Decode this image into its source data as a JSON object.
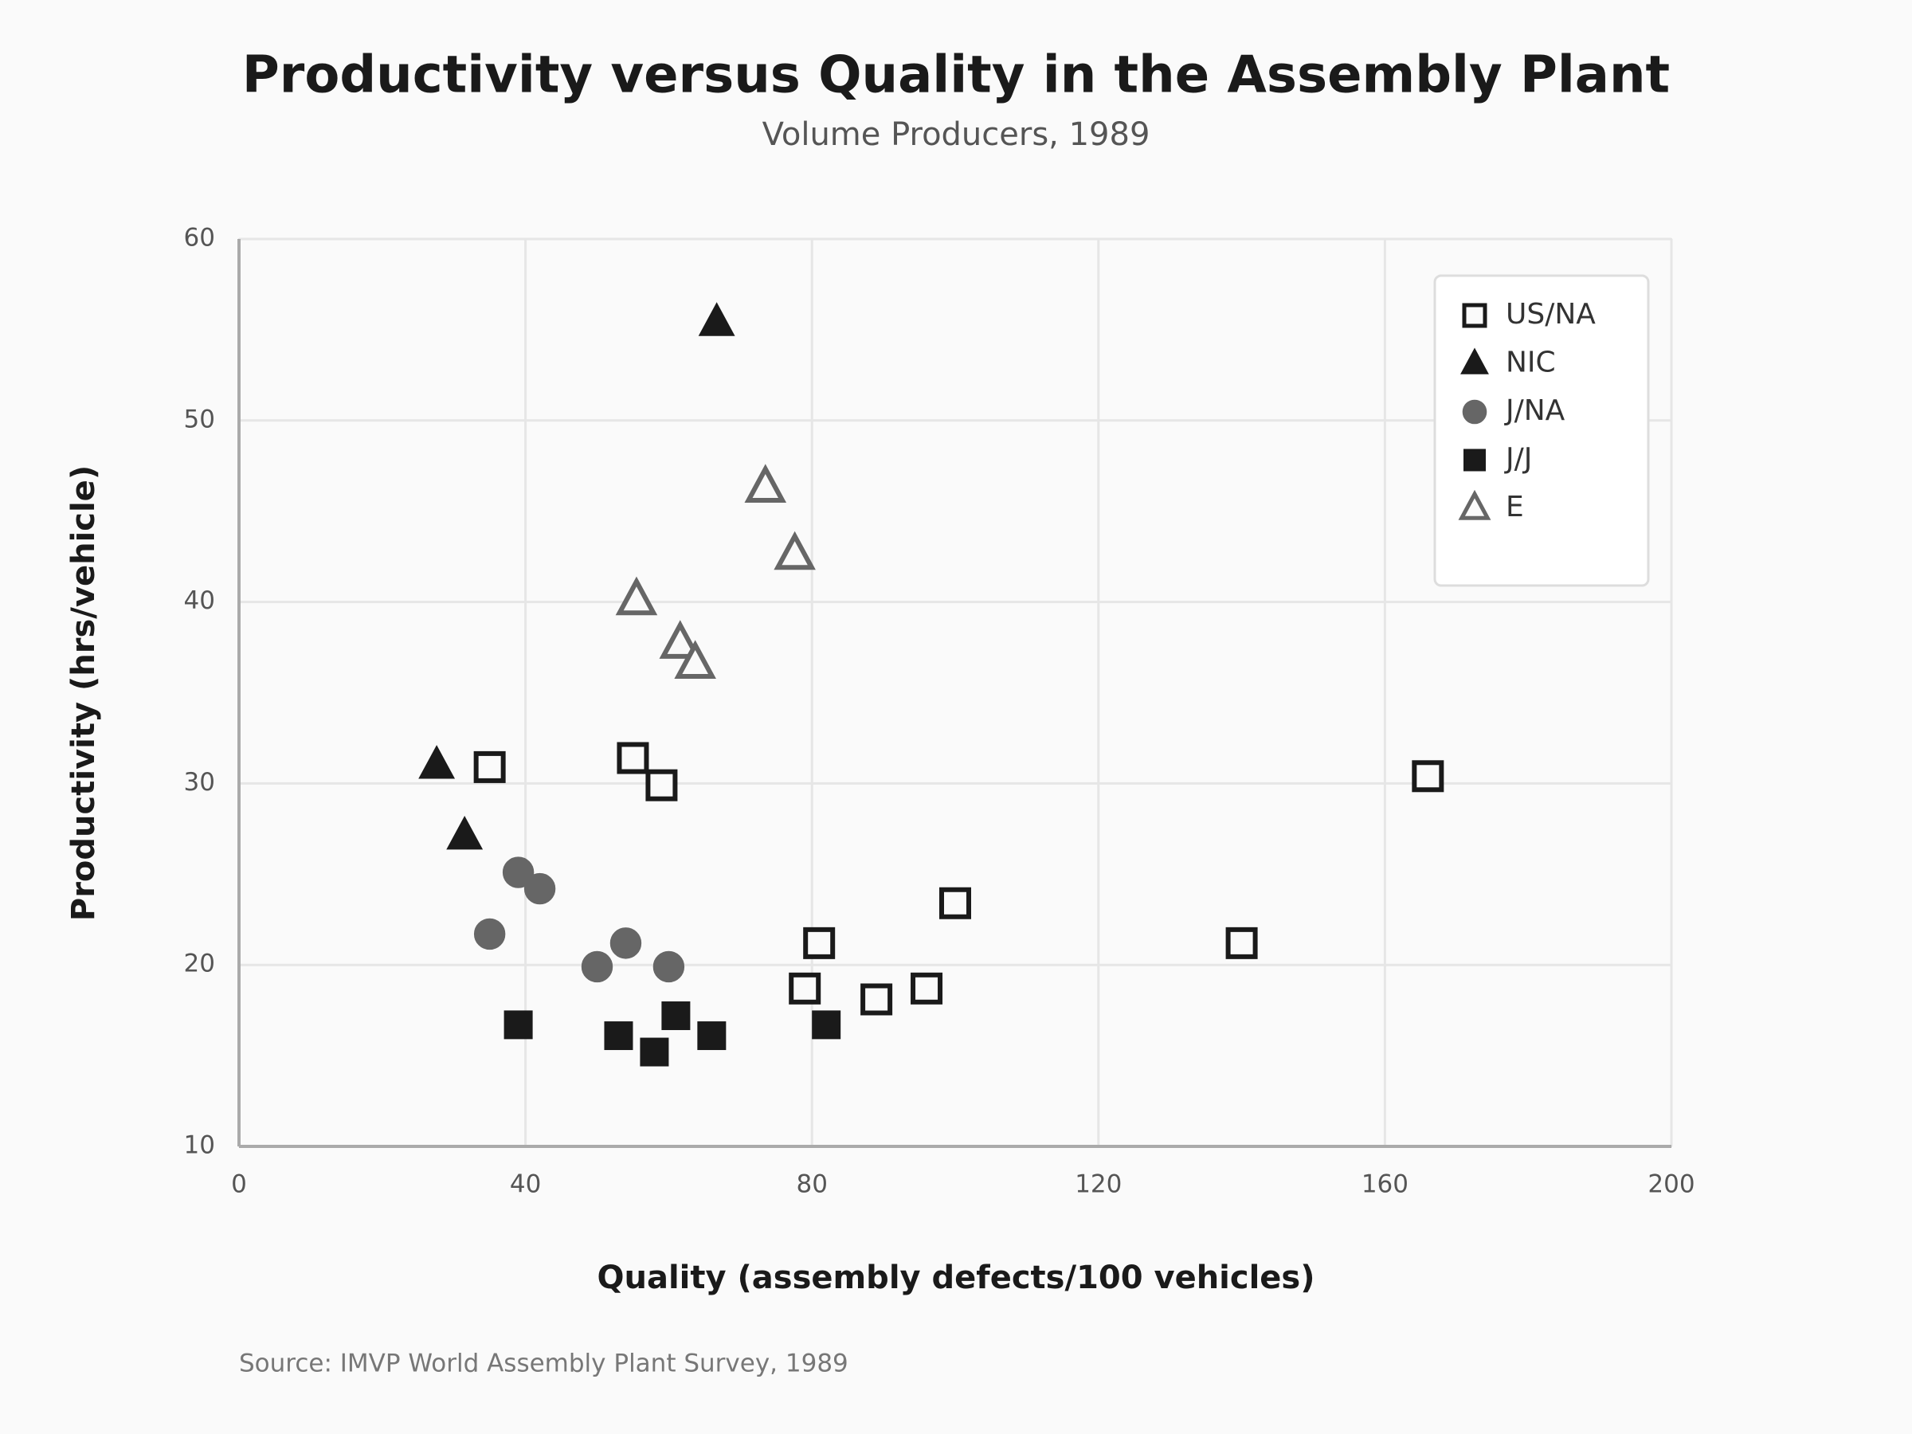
{
  "chart_data": {
    "type": "scatter",
    "title": "Productivity versus Quality in the Assembly Plant",
    "subtitle": "Volume Producers, 1989",
    "x_label": "Quality (assembly defects/100 vehicles)",
    "y_label": "Productivity (hrs/vehicle)",
    "source": "Source: IMVP World Assembly Plant Survey, 1989",
    "xlim": [
      0,
      200
    ],
    "xticks": [
      0,
      40,
      80,
      120,
      160,
      200
    ],
    "ylim": [
      10,
      60
    ],
    "yticks": [
      10,
      20,
      30,
      40,
      50,
      60
    ],
    "grid": true,
    "legend": "upper right",
    "series": [
      {
        "name": "US/NA",
        "color": "#1a1a1a",
        "marker": "square",
        "filled": false,
        "x": [
          35,
          55,
          59,
          81,
          79,
          89,
          96,
          100,
          140,
          166
        ],
        "values": [
          30.9,
          31.4,
          29.9,
          21.2,
          18.7,
          18.1,
          18.7,
          23.4,
          21.2,
          30.4
        ]
      },
      {
        "name": "NIC",
        "color": "#1a1a1a",
        "marker": "triangle",
        "filled": true,
        "x": [
          27.6,
          31.5,
          66.7
        ],
        "values": [
          31.0,
          27.1,
          55.4
        ]
      },
      {
        "name": "J/NA",
        "color": "#666666",
        "marker": "circle",
        "filled": true,
        "x": [
          39,
          42,
          35,
          50,
          54,
          60
        ],
        "values": [
          25.1,
          24.2,
          21.7,
          19.9,
          21.2,
          19.9
        ]
      },
      {
        "name": "J/J",
        "color": "#1a1a1a",
        "marker": "square",
        "filled": true,
        "x": [
          39,
          53,
          58,
          61,
          66,
          82
        ],
        "values": [
          16.7,
          16.1,
          15.2,
          17.2,
          16.1,
          16.7
        ]
      },
      {
        "name": "E",
        "color": "#666666",
        "marker": "triangle",
        "filled": false,
        "x": [
          73.5,
          77.6,
          55.5,
          61.6,
          63.7
        ],
        "values": [
          46.3,
          42.6,
          40.1,
          37.7,
          36.6
        ]
      }
    ]
  }
}
